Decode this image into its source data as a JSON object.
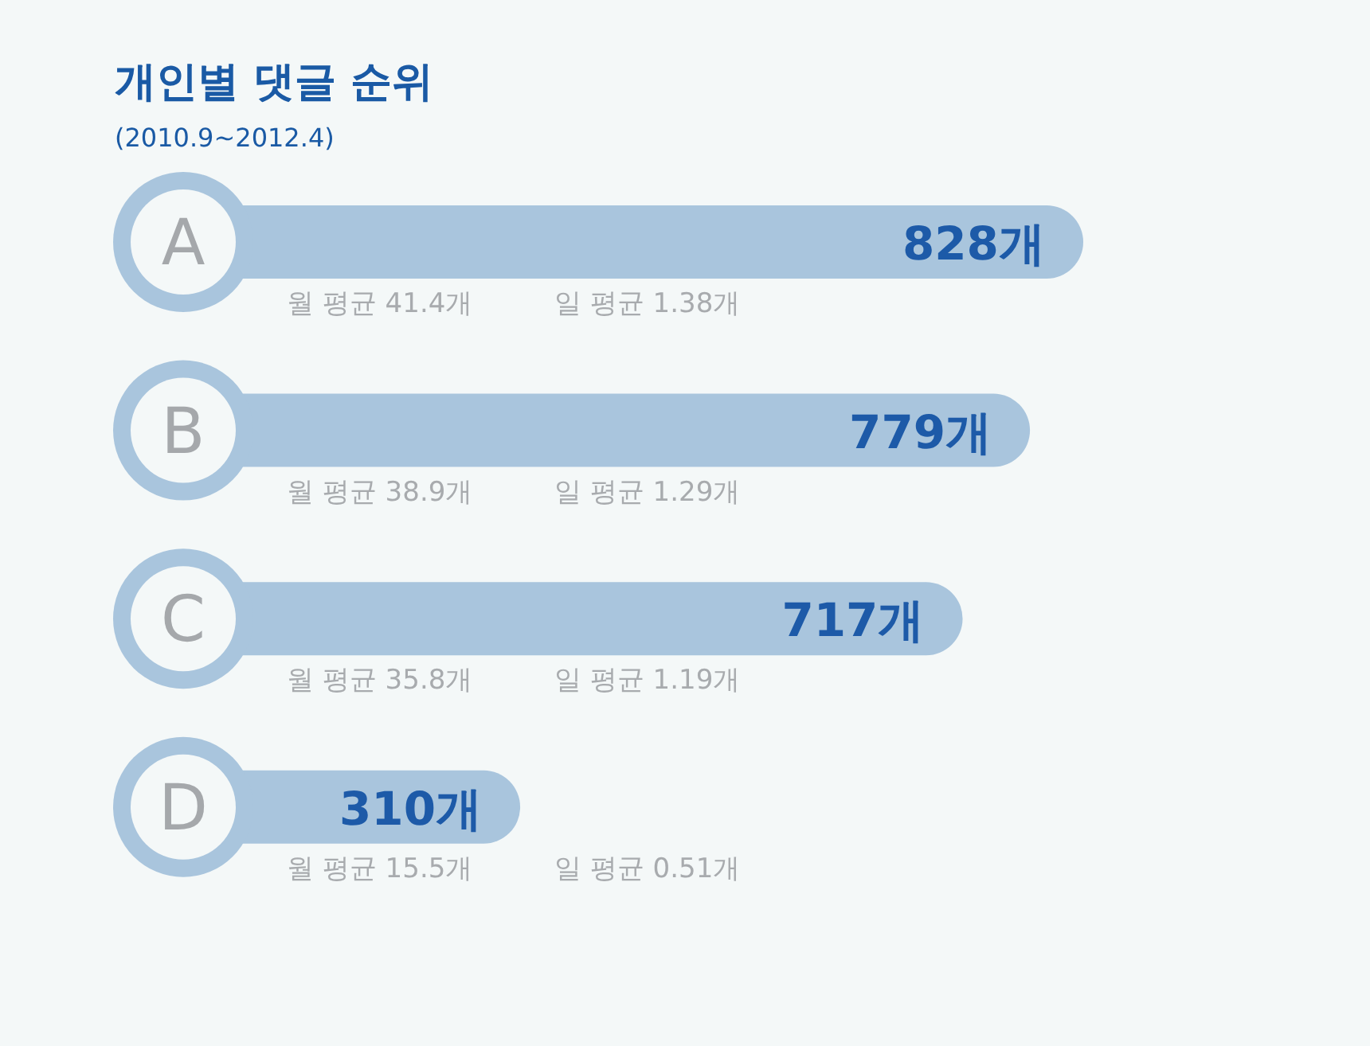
{
  "chart_data": {
    "type": "bar",
    "orientation": "horizontal",
    "title": "개인별 댓글 순위",
    "subtitle": "(2010.9~2012.4)",
    "categories": [
      "A",
      "B",
      "C",
      "D"
    ],
    "values": [
      828,
      779,
      717,
      310
    ],
    "value_labels": [
      "828개",
      "779개",
      "717개",
      "310개"
    ],
    "color": "#a9c5dd",
    "annotations": [
      "월 평균 41.4개",
      "일 평균 1.38개",
      "월 평균 38.9개",
      "일 평균 1.29개",
      "월 평균 35.8개",
      "일 평균 1.19개",
      "월 평균 15.5개",
      "일 평균 0.51개"
    ]
  }
}
